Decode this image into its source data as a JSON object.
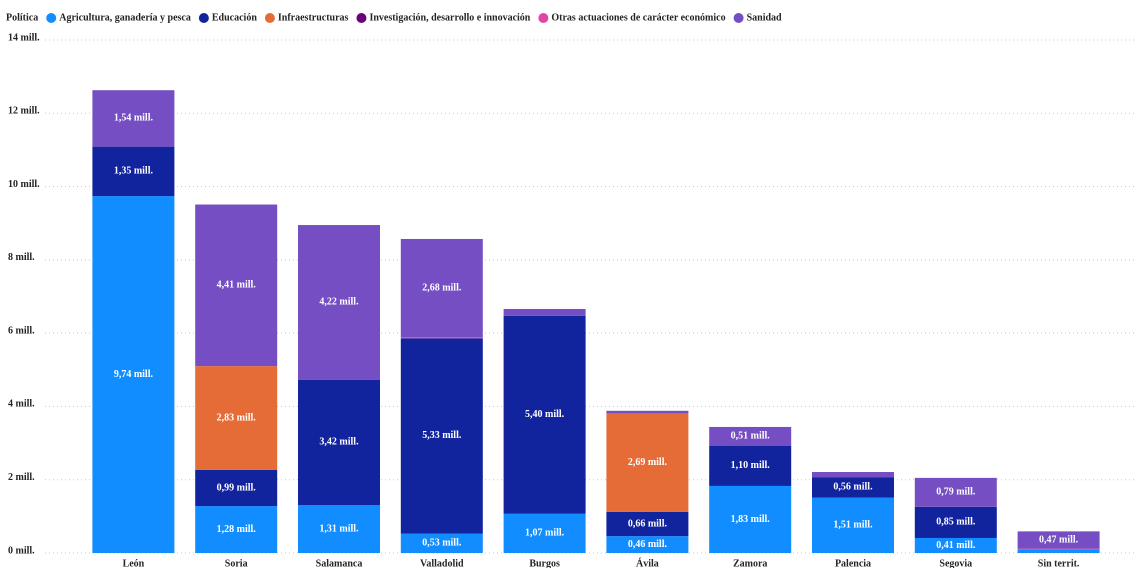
{
  "chart_data": {
    "type": "bar",
    "stacked": true,
    "legend_title": "Política",
    "legend": "top-left",
    "grid": true,
    "categories": [
      "León",
      "Soria",
      "Salamanca",
      "Valladolid",
      "Burgos",
      "Ávila",
      "Zamora",
      "Palencia",
      "Segovia",
      "Sin territ."
    ],
    "ylim": [
      0,
      14
    ],
    "yticks": [
      {
        "value": 0,
        "label": "0 mill."
      },
      {
        "value": 2,
        "label": "2 mill."
      },
      {
        "value": 4,
        "label": "4 mill."
      },
      {
        "value": 6,
        "label": "6 mill."
      },
      {
        "value": 8,
        "label": "8 mill."
      },
      {
        "value": 10,
        "label": "10 mill."
      },
      {
        "value": 12,
        "label": "12 mill."
      },
      {
        "value": 14,
        "label": "14 mill."
      }
    ],
    "series": [
      {
        "name": "Agricultura, ganadería y pesca",
        "color": "#118DFF",
        "values": [
          9.74,
          1.28,
          1.31,
          0.53,
          1.07,
          0.46,
          1.83,
          1.51,
          0.41,
          0.1
        ],
        "value_labels": [
          "9,74 mill.",
          "1,28 mill.",
          "1,31 mill.",
          "0,53 mill.",
          "1,07 mill.",
          "0,46 mill.",
          "1,83 mill.",
          "1,51 mill.",
          "0,41 mill.",
          null
        ]
      },
      {
        "name": "Educación",
        "color": "#12239E",
        "values": [
          1.35,
          0.99,
          3.42,
          5.33,
          5.4,
          0.66,
          1.1,
          0.56,
          0.85,
          0
        ],
        "value_labels": [
          "1,35 mill.",
          "0,99 mill.",
          "3,42 mill.",
          "5,33 mill.",
          "5,40 mill.",
          "0,66 mill.",
          "1,10 mill.",
          "0,56 mill.",
          "0,85 mill.",
          null
        ]
      },
      {
        "name": "Infraestructuras",
        "color": "#E66C37",
        "values": [
          0,
          2.83,
          0,
          0,
          0,
          2.69,
          0,
          0,
          0,
          0
        ],
        "value_labels": [
          null,
          "2,83 mill.",
          null,
          null,
          null,
          "2,69 mill.",
          null,
          null,
          null,
          null
        ]
      },
      {
        "name": "Investigación, desarrollo e innovación",
        "color": "#6B007B",
        "values": [
          0,
          0,
          0,
          0,
          0,
          0,
          0,
          0,
          0,
          0
        ],
        "value_labels": [
          null,
          null,
          null,
          null,
          null,
          null,
          null,
          null,
          null,
          null
        ]
      },
      {
        "name": "Otras actuaciones de carácter económico",
        "color": "#E044A7",
        "values": [
          0,
          0,
          0,
          0.03,
          0,
          0,
          0,
          0,
          0,
          0.02
        ],
        "value_labels": [
          null,
          null,
          null,
          null,
          null,
          null,
          null,
          null,
          null,
          null
        ]
      },
      {
        "name": "Sanidad",
        "color": "#744EC2",
        "values": [
          1.54,
          4.41,
          4.22,
          2.68,
          0.19,
          0.07,
          0.51,
          0.14,
          0.79,
          0.47
        ],
        "value_labels": [
          "1,54 mill.",
          "4,41 mill.",
          "4,22 mill.",
          "2,68 mill.",
          null,
          null,
          "0,51 mill.",
          null,
          "0,79 mill.",
          "0,47 mill."
        ]
      }
    ]
  }
}
